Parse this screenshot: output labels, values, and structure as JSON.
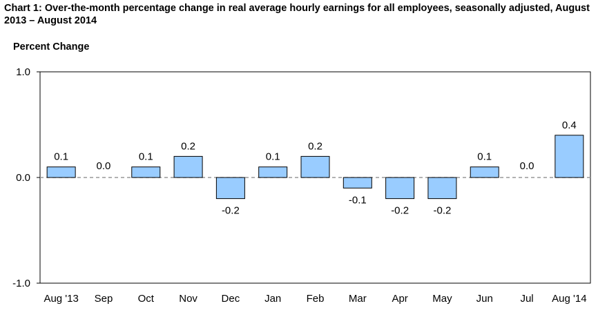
{
  "title": "Chart 1: Over-the-month percentage change in real average hourly earnings for all employees, seasonally adjusted, August 2013 – August 2014",
  "colors": {
    "bar_fill": "#99ccff",
    "bar_stroke": "#000000",
    "axis": "#000000",
    "zero_line": "#999999"
  },
  "chart_data": {
    "type": "bar",
    "title": "Chart 1: Over-the-month percentage change in real average hourly earnings for all employees, seasonally adjusted, August 2013 – August 2014",
    "ylabel": "Percent Change",
    "xlabel": "",
    "ylim": [
      -1.0,
      1.0
    ],
    "yticks": [
      "1.0",
      "0.0",
      "-1.0"
    ],
    "ytick_values": [
      1.0,
      0.0,
      -1.0
    ],
    "categories": [
      "Aug '13",
      "Sep",
      "Oct",
      "Nov",
      "Dec",
      "Jan",
      "Feb",
      "Mar",
      "Apr",
      "May",
      "Jun",
      "Jul",
      "Aug '14"
    ],
    "values": [
      0.1,
      0.0,
      0.1,
      0.2,
      -0.2,
      0.1,
      0.2,
      -0.1,
      -0.2,
      -0.2,
      0.1,
      0.0,
      0.4
    ],
    "data_labels": [
      "0.1",
      "0.0",
      "0.1",
      "0.2",
      "-0.2",
      "0.1",
      "0.2",
      "-0.1",
      "-0.2",
      "-0.2",
      "0.1",
      "0.0",
      "0.4"
    ],
    "grid": false,
    "legend": "none"
  }
}
